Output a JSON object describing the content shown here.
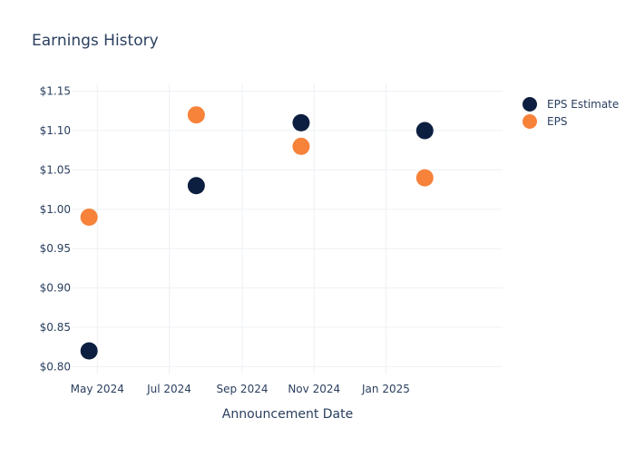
{
  "chart_data": {
    "type": "scatter",
    "title": "Earnings History",
    "xlabel": "Announcement Date",
    "ylabel": "",
    "x_ticks": [
      {
        "date": "2024-05-01",
        "label": "May 2024"
      },
      {
        "date": "2024-07-01",
        "label": "Jul 2024"
      },
      {
        "date": "2024-09-01",
        "label": "Sep 2024"
      },
      {
        "date": "2024-11-01",
        "label": "Nov 2024"
      },
      {
        "date": "2025-01-01",
        "label": "Jan 2025"
      }
    ],
    "x_range": [
      "2024-04-10",
      "2025-04-10"
    ],
    "ylim": [
      0.79,
      1.16
    ],
    "y_ticks": [
      0.8,
      0.85,
      0.9,
      0.95,
      1.0,
      1.05,
      1.1,
      1.15
    ],
    "y_tick_labels": [
      "$0.80",
      "$0.85",
      "$0.90",
      "$0.95",
      "$1.00",
      "$1.05",
      "$1.10",
      "$1.15"
    ],
    "grid": true,
    "legend_position": "top-right",
    "series": [
      {
        "name": "EPS Estimate",
        "color": "#0d1f40",
        "points": [
          {
            "x": "2024-04-24",
            "y": 0.82
          },
          {
            "x": "2024-07-24",
            "y": 1.03
          },
          {
            "x": "2024-10-21",
            "y": 1.11
          },
          {
            "x": "2025-02-03",
            "y": 1.1
          }
        ]
      },
      {
        "name": "EPS",
        "color": "#f7823a",
        "points": [
          {
            "x": "2024-04-24",
            "y": 0.99
          },
          {
            "x": "2024-07-24",
            "y": 1.12
          },
          {
            "x": "2024-10-21",
            "y": 1.08
          },
          {
            "x": "2025-02-03",
            "y": 1.04
          }
        ]
      }
    ]
  }
}
